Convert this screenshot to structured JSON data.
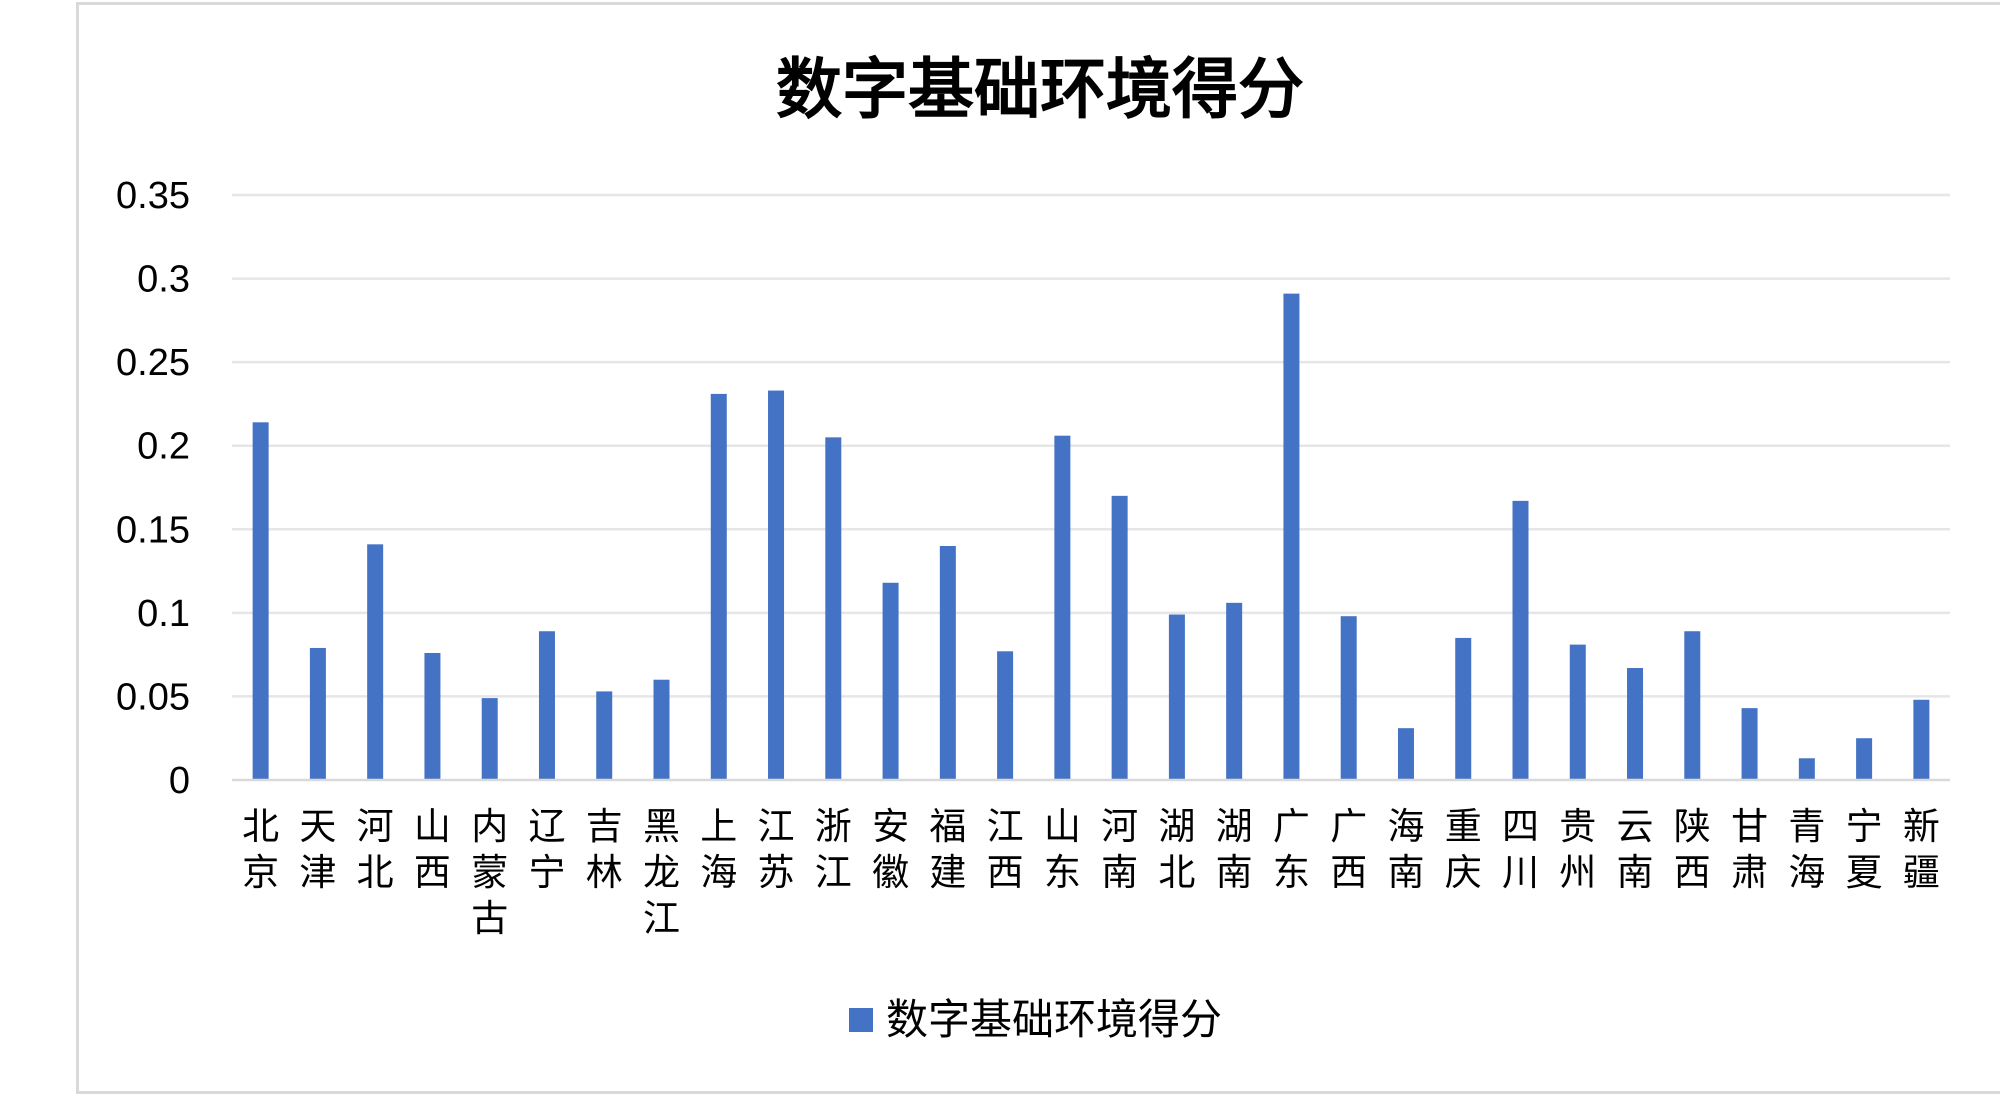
{
  "chart_data": {
    "type": "bar",
    "title": "数字基础环境得分",
    "xlabel": "",
    "ylabel": "",
    "ylim": [
      0,
      0.35
    ],
    "yticks": [
      "0",
      "0.05",
      "0.1",
      "0.15",
      "0.2",
      "0.25",
      "0.3",
      "0.35"
    ],
    "grid": true,
    "legend_position": "bottom",
    "categories": [
      "北京",
      "天津",
      "河北",
      "山西",
      "内蒙古",
      "辽宁",
      "吉林",
      "黑龙江",
      "上海",
      "江苏",
      "浙江",
      "安徽",
      "福建",
      "江西",
      "山东",
      "河南",
      "湖北",
      "湖南",
      "广东",
      "广西",
      "海南",
      "重庆",
      "四川",
      "贵州",
      "云南",
      "陕西",
      "甘肃",
      "青海",
      "宁夏",
      "新疆"
    ],
    "series": [
      {
        "name": "数字基础环境得分",
        "color": "#4472C4",
        "values": [
          0.214,
          0.079,
          0.141,
          0.076,
          0.049,
          0.089,
          0.053,
          0.06,
          0.231,
          0.233,
          0.205,
          0.118,
          0.14,
          0.077,
          0.206,
          0.17,
          0.099,
          0.106,
          0.291,
          0.098,
          0.031,
          0.085,
          0.167,
          0.081,
          0.067,
          0.089,
          0.043,
          0.013,
          0.025,
          0.048
        ]
      }
    ]
  }
}
